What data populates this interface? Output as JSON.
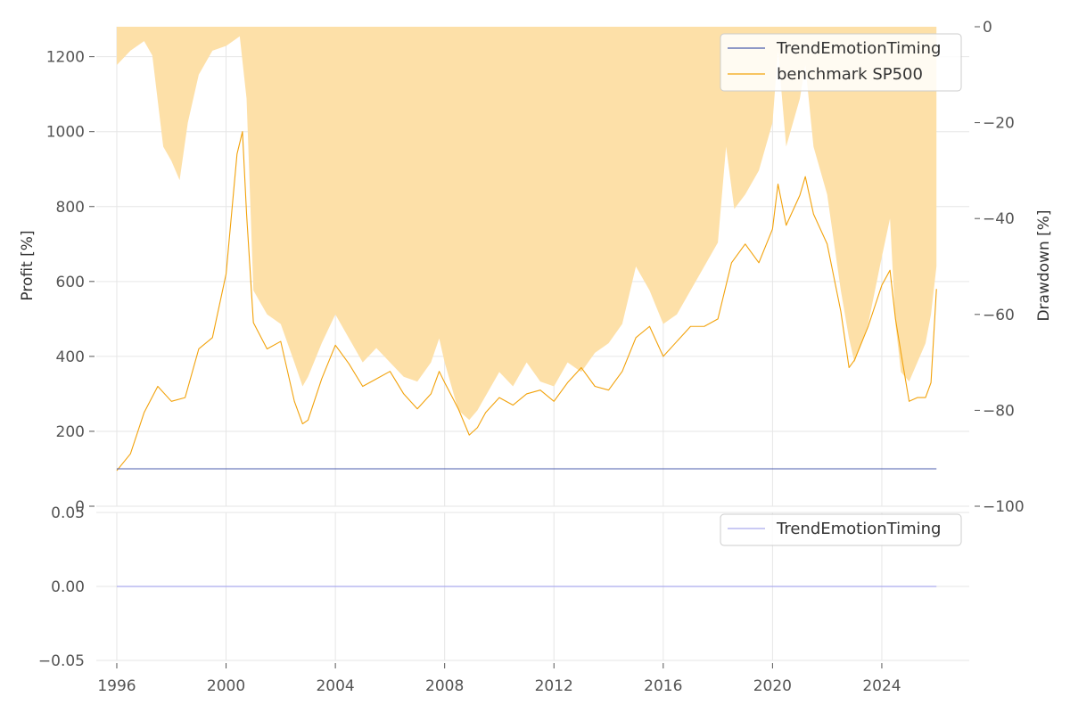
{
  "chart_data": [
    {
      "type": "line",
      "title": "",
      "xlabel": "",
      "ylabel": "Profit [%]",
      "y2label": "Drawdown [%]",
      "xlim": [
        1995.25,
        2027.2
      ],
      "ylim": [
        0,
        1280
      ],
      "y2lim": [
        -100,
        0
      ],
      "xticks": [
        1996,
        2000,
        2004,
        2008,
        2012,
        2016,
        2020,
        2024
      ],
      "xtick_labels": [
        "1996",
        "2000",
        "2004",
        "2008",
        "2012",
        "2016",
        "2020",
        "2024"
      ],
      "yticks": [
        0,
        200,
        400,
        600,
        800,
        1000,
        1200
      ],
      "ytick_labels": [
        "0",
        "200",
        "400",
        "600",
        "800",
        "1000",
        "1200"
      ],
      "y2ticks": [
        0,
        -20,
        -40,
        -60,
        -80,
        -100
      ],
      "y2tick_labels": [
        "0",
        "−20",
        "−40",
        "−60",
        "−80",
        "−100"
      ],
      "grid": true,
      "legend_position": "top-right",
      "series": [
        {
          "name": "TrendEmotionTiming",
          "color": "#4b5cad",
          "x": [
            1996.0,
            2026.0
          ],
          "values": [
            100,
            100
          ]
        },
        {
          "name": "benchmark SP500",
          "color": "#f2a20b",
          "x": [
            1996.0,
            1996.5,
            1997.0,
            1997.5,
            1998.0,
            1998.5,
            1999.0,
            1999.5,
            2000.0,
            2000.4,
            2000.6,
            2000.75,
            2001.0,
            2001.5,
            2002.0,
            2002.5,
            2002.8,
            2003.0,
            2003.5,
            2004.0,
            2004.5,
            2005.0,
            2005.5,
            2006.0,
            2006.5,
            2007.0,
            2007.5,
            2007.8,
            2008.0,
            2008.5,
            2008.9,
            2009.2,
            2009.5,
            2010.0,
            2010.5,
            2011.0,
            2011.5,
            2012.0,
            2012.5,
            2013.0,
            2013.5,
            2014.0,
            2014.5,
            2015.0,
            2015.5,
            2016.0,
            2016.5,
            2017.0,
            2017.5,
            2018.0,
            2018.5,
            2019.0,
            2019.5,
            2020.0,
            2020.2,
            2020.5,
            2021.0,
            2021.2,
            2021.5,
            2022.0,
            2022.5,
            2022.8,
            2023.0,
            2023.5,
            2024.0,
            2024.3,
            2024.5,
            2024.7,
            2025.0,
            2025.3,
            2025.6,
            2025.8,
            2026.0
          ],
          "values": [
            95,
            140,
            250,
            320,
            280,
            290,
            420,
            450,
            620,
            940,
            1000,
            780,
            490,
            420,
            440,
            280,
            220,
            230,
            340,
            430,
            380,
            320,
            340,
            360,
            300,
            260,
            300,
            360,
            330,
            260,
            190,
            210,
            250,
            290,
            270,
            300,
            310,
            280,
            330,
            370,
            320,
            310,
            360,
            450,
            480,
            400,
            440,
            480,
            480,
            500,
            650,
            700,
            650,
            740,
            860,
            750,
            830,
            880,
            780,
            700,
            520,
            370,
            390,
            480,
            590,
            630,
            500,
            410,
            280,
            290,
            290,
            330,
            580
          ]
        },
        {
          "name": "Drawdown",
          "color": "#fde0a8",
          "x": [
            1996.0,
            1996.5,
            1997.0,
            1997.3,
            1997.7,
            1998.0,
            1998.3,
            1998.6,
            1999.0,
            1999.5,
            2000.0,
            2000.5,
            2000.75,
            2001.0,
            2001.5,
            2002.0,
            2002.5,
            2002.8,
            2003.0,
            2003.5,
            2004.0,
            2004.5,
            2005.0,
            2005.5,
            2006.0,
            2006.5,
            2007.0,
            2007.5,
            2007.8,
            2008.0,
            2008.5,
            2008.9,
            2009.2,
            2009.5,
            2010.0,
            2010.5,
            2011.0,
            2011.5,
            2012.0,
            2012.5,
            2013.0,
            2013.5,
            2014.0,
            2014.5,
            2015.0,
            2015.5,
            2016.0,
            2016.5,
            2017.0,
            2017.5,
            2018.0,
            2018.3,
            2018.6,
            2019.0,
            2019.5,
            2020.0,
            2020.2,
            2020.5,
            2021.0,
            2021.2,
            2021.5,
            2022.0,
            2022.5,
            2022.8,
            2023.0,
            2023.5,
            2024.0,
            2024.3,
            2024.5,
            2024.7,
            2025.0,
            2025.3,
            2025.6,
            2025.8,
            2026.0
          ],
          "values": [
            -8,
            -5,
            -3,
            -6,
            -25,
            -28,
            -32,
            -20,
            -10,
            -5,
            -4,
            -2,
            -15,
            -55,
            -60,
            -62,
            -70,
            -75,
            -73,
            -66,
            -60,
            -65,
            -70,
            -67,
            -70,
            -73,
            -74,
            -70,
            -65,
            -70,
            -80,
            -82,
            -80,
            -77,
            -72,
            -75,
            -70,
            -74,
            -75,
            -70,
            -72,
            -68,
            -66,
            -62,
            -50,
            -55,
            -62,
            -60,
            -55,
            -50,
            -45,
            -25,
            -38,
            -35,
            -30,
            -20,
            -5,
            -25,
            -15,
            -8,
            -25,
            -35,
            -55,
            -65,
            -70,
            -62,
            -48,
            -40,
            -62,
            -72,
            -74,
            -70,
            -66,
            -60,
            -50
          ]
        }
      ]
    },
    {
      "type": "line",
      "title": "",
      "xlabel": "",
      "ylabel": "",
      "xlim": [
        1995.25,
        2027.2
      ],
      "ylim": [
        -0.05,
        0.05
      ],
      "yticks": [
        -0.05,
        0.0,
        0.05
      ],
      "ytick_labels": [
        "−0.05",
        "0.00",
        "0.05"
      ],
      "grid": true,
      "legend_position": "top-right",
      "series": [
        {
          "name": "TrendEmotionTiming",
          "color": "#aaaaee",
          "x": [
            1996.0,
            2026.0
          ],
          "values": [
            0.0,
            0.0
          ]
        }
      ]
    }
  ]
}
